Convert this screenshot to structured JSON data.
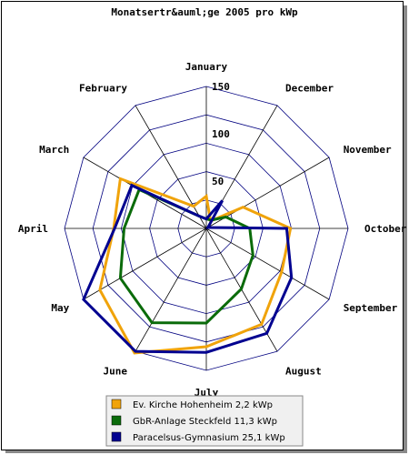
{
  "chart_data": {
    "type": "radar",
    "title": "Monatsertr&auml;ge 2005 pro kWp",
    "categories": [
      "January",
      "February",
      "March",
      "April",
      "May",
      "June",
      "July",
      "August",
      "September",
      "October",
      "November",
      "December"
    ],
    "rlim": [
      0,
      150
    ],
    "ticks": [
      50,
      100,
      150
    ],
    "grid": true,
    "legend_position": "bottom",
    "series": [
      {
        "name": "Ev. Kirche Hohenheim 2,2 kWp",
        "color": "#f0a30a",
        "values": [
          34,
          27,
          105,
          98,
          130,
          152,
          125,
          117,
          92,
          89,
          45,
          9
        ]
      },
      {
        "name": "GbR-Anlage Steckfeld 11,3 kWp",
        "color": "#0a6b0a",
        "values": [
          10,
          15,
          82,
          87,
          105,
          115,
          100,
          74,
          57,
          46,
          24,
          10
        ]
      },
      {
        "name": "Paracelsus-Gymnasium 25,1 kWp",
        "color": "#000090",
        "values": [
          10,
          15,
          91,
          97,
          150,
          150,
          131,
          128,
          104,
          85,
          2,
          34
        ]
      }
    ]
  }
}
